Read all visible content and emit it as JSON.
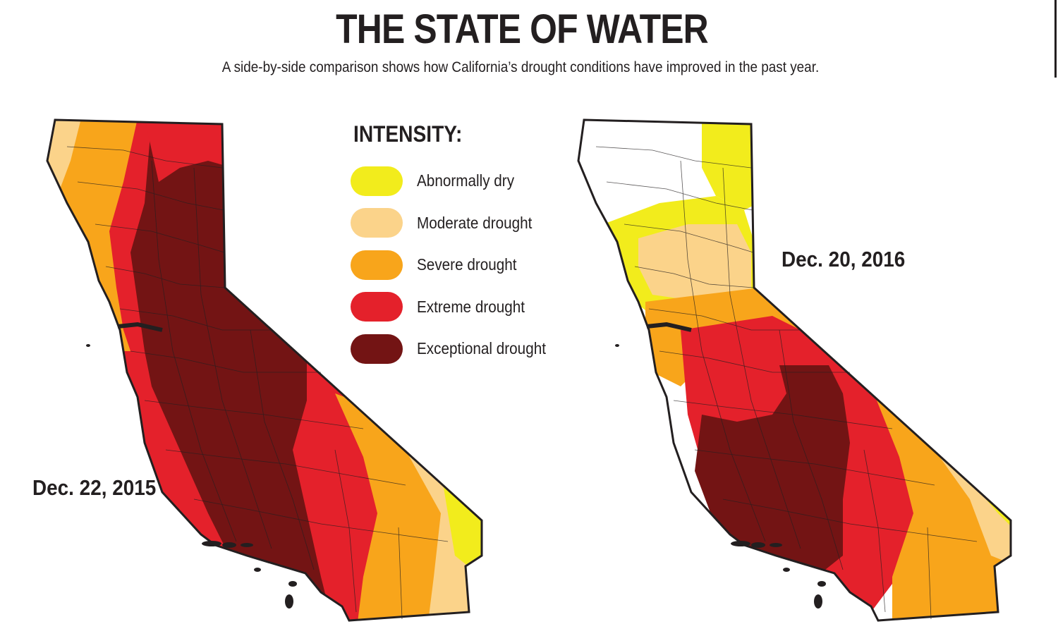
{
  "title": "THE STATE OF WATER",
  "subtitle": "A side-by-side comparison shows how California’s drought conditions have improved in the past year.",
  "legend": {
    "title": "INTENSITY:",
    "items": [
      {
        "label": "Abnormally dry",
        "color": "#f2ec1c"
      },
      {
        "label": "Moderate drought",
        "color": "#fbd38a"
      },
      {
        "label": "Severe drought",
        "color": "#f8a51b"
      },
      {
        "label": "Extreme drought",
        "color": "#e4212b"
      },
      {
        "label": "Exceptional drought",
        "color": "#731414"
      }
    ]
  },
  "maps": {
    "dec_2015": {
      "date": "Dec. 22, 2015"
    },
    "dec_2016": {
      "date": "Dec. 20, 2016"
    }
  }
}
